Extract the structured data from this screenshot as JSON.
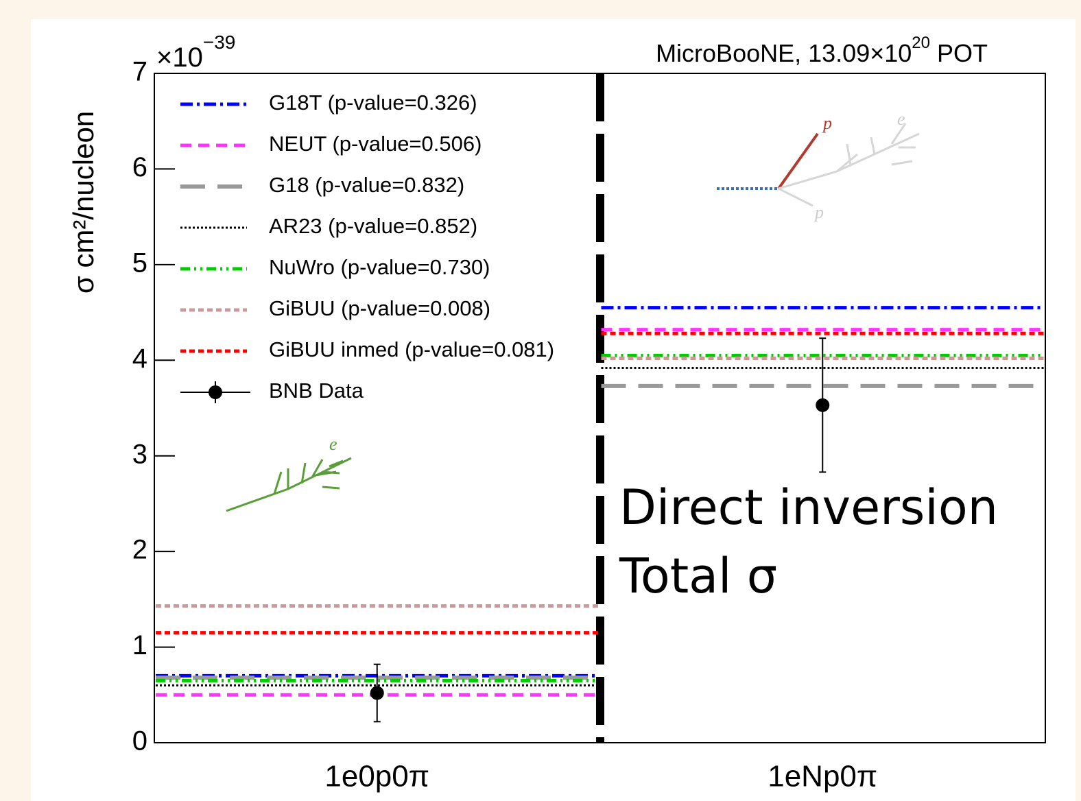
{
  "chart_data": {
    "type": "line",
    "title_parts": [
      "MicroBooNE, 13.09×10",
      "20",
      " POT"
    ],
    "y_multiplier": [
      "×10",
      "−39"
    ],
    "ylabel": "σ cm²/nucleon",
    "categories": [
      "1e0p0π",
      "1eNp0π"
    ],
    "ylim": [
      0,
      7
    ],
    "yticks": [
      0,
      1,
      2,
      3,
      4,
      5,
      6,
      7
    ],
    "legend": "upper left",
    "series": [
      {
        "name": "G18T (p-value=0.326)",
        "color": "#0000ff",
        "linestyle": "dashdot",
        "values": [
          0.7,
          4.55
        ]
      },
      {
        "name": "NEUT (p-value=0.506)",
        "color": "#ff33ff",
        "linestyle": "dashed",
        "values": [
          0.5,
          4.32
        ]
      },
      {
        "name": "G18 (p-value=0.832)",
        "color": "#999999",
        "linestyle": "longdash",
        "values": [
          0.68,
          3.73
        ]
      },
      {
        "name": "AR23 (p-value=0.852)",
        "color": "#000000",
        "linestyle": "dotted",
        "values": [
          0.6,
          3.92
        ]
      },
      {
        "name": "NuWro (p-value=0.730)",
        "color": "#00cc00",
        "linestyle": "dashdotdot",
        "values": [
          0.65,
          4.05
        ]
      },
      {
        "name": "GiBUU (p-value=0.008)",
        "color": "#cc9999",
        "linestyle": "dense",
        "values": [
          1.43,
          4.02
        ]
      },
      {
        "name": "GiBUU inmed (p-value=0.081)",
        "color": "#ff0000",
        "linestyle": "dense",
        "values": [
          1.15,
          4.28
        ]
      },
      {
        "name": "BNB Data",
        "color": "#000000",
        "linestyle": "points",
        "values": [
          0.52,
          3.53
        ],
        "errors": [
          0.3,
          0.7
        ]
      }
    ],
    "annotations": [
      "Direct inversion",
      "Total σ"
    ],
    "inset_labels": [
      "p",
      "e",
      "p",
      "e"
    ]
  }
}
